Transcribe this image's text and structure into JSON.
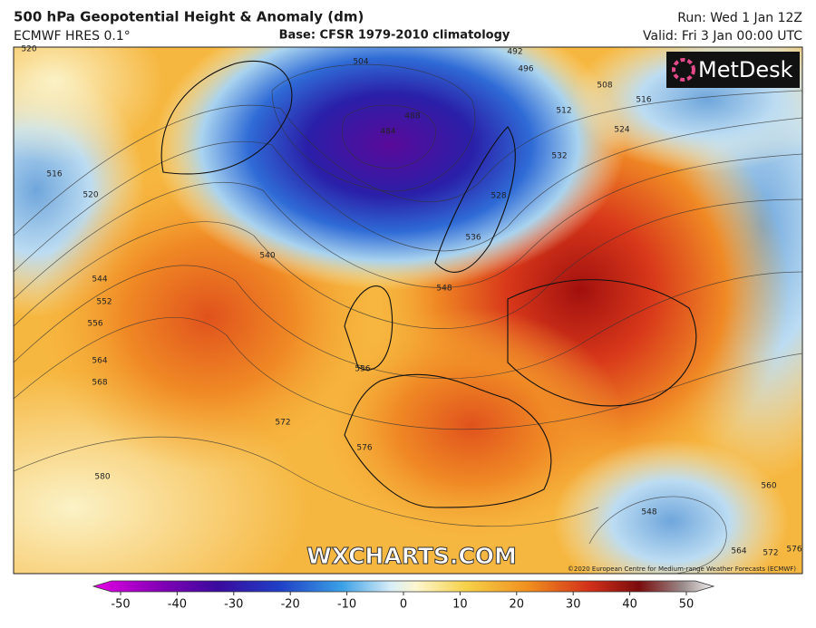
{
  "header": {
    "title": "500 hPa Geopotential Height & Anomaly (dm)",
    "model": "ECMWF HRES 0.1°",
    "base": "Base: CFSR 1979-2010 climatology",
    "run": "Run: Wed 1 Jan 12Z",
    "valid": "Valid: Fri 3 Jan 00:00 UTC"
  },
  "logo": "MetDesk",
  "watermark": "WXCHARTS.COM",
  "copyright": "©2020 European Centre for Medium-range Weather Forecasts (ECMWF)",
  "contour_labels": [
    520,
    516,
    520,
    540,
    544,
    552,
    556,
    564,
    568,
    572,
    576,
    580,
    504,
    492,
    496,
    488,
    484,
    516,
    524,
    512,
    508,
    532,
    528,
    536,
    548,
    556,
    548,
    564,
    572,
    576,
    560
  ],
  "colorbar": {
    "lim": [
      -50,
      50
    ],
    "ticks": [
      -50,
      -40,
      -30,
      -20,
      -10,
      0,
      10,
      20,
      30,
      40,
      50
    ]
  }
}
